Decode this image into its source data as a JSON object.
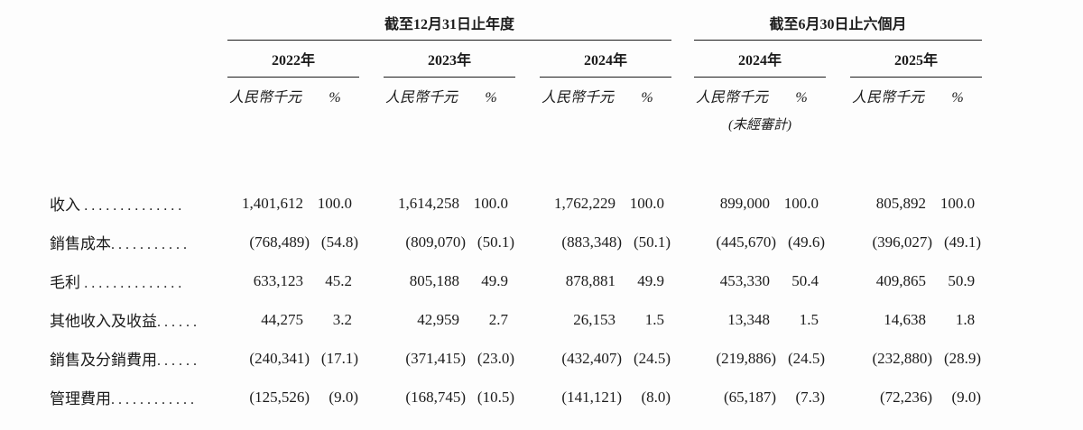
{
  "table": {
    "group_headers": [
      {
        "label": "截至12月31日止年度"
      },
      {
        "label": "截至6月30日止六個月"
      }
    ],
    "year_headers": [
      "2022年",
      "2023年",
      "2024年",
      "2024年",
      "2025年"
    ],
    "unit_label": "人民幣千元",
    "pct_label": "%",
    "unaudited_note": "(未經審計)",
    "rows": [
      {
        "label": "收入 ",
        "dots": "..............",
        "values": [
          "1,401,612",
          "100.0",
          "1,614,258",
          "100.0",
          "1,762,229",
          "100.0",
          "899,000",
          "100.0",
          "805,892",
          "100.0"
        ]
      },
      {
        "label": "銷售成本",
        "dots": "...........",
        "values": [
          "(768,489)",
          "(54.8)",
          "(809,070)",
          "(50.1)",
          "(883,348)",
          "(50.1)",
          "(445,670)",
          "(49.6)",
          "(396,027)",
          "(49.1)"
        ]
      },
      {
        "label": "毛利 ",
        "dots": "..............",
        "values": [
          "633,123",
          "45.2",
          "805,188",
          "49.9",
          "878,881",
          "49.9",
          "453,330",
          "50.4",
          "409,865",
          "50.9"
        ]
      },
      {
        "label": "其他收入及收益",
        "dots": "......",
        "values": [
          "44,275",
          "3.2",
          "42,959",
          "2.7",
          "26,153",
          "1.5",
          "13,348",
          "1.5",
          "14,638",
          "1.8"
        ]
      },
      {
        "label": "銷售及分銷費用",
        "dots": "......",
        "values": [
          "(240,341)",
          "(17.1)",
          "(371,415)",
          "(23.0)",
          "(432,407)",
          "(24.5)",
          "(219,886)",
          "(24.5)",
          "(232,880)",
          "(28.9)"
        ]
      },
      {
        "label": "管理費用",
        "dots": "............",
        "values": [
          "(125,526)",
          "(9.0)",
          "(168,745)",
          "(10.5)",
          "(141,121)",
          "(8.0)",
          "(65,187)",
          "(7.3)",
          "(72,236)",
          "(9.0)"
        ]
      }
    ]
  },
  "colors": {
    "text": "#1b1b1b",
    "rule": "#1b1b1b",
    "background": "#fdfdfd"
  }
}
